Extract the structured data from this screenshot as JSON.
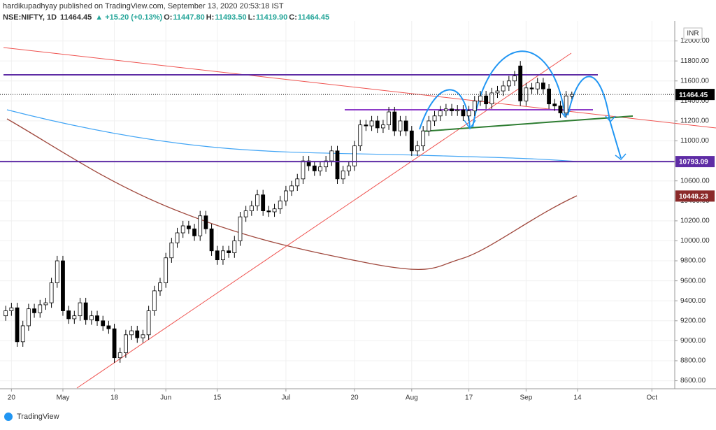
{
  "chart_data": {
    "type": "candlestick",
    "publisher": "hardikupadhyay published on TradingView.com, September 13, 2020 20:53:18 IST",
    "symbol": "NSE:NIFTY, 1D",
    "last_label": "11464.45",
    "change": "▲ +15.20 (+0.13%)",
    "ohlc_legend": [
      {
        "key": "O:",
        "value": "11447.80"
      },
      {
        "key": "H:",
        "value": "11493.50"
      },
      {
        "key": "L:",
        "value": "11419.90"
      },
      {
        "key": "C:",
        "value": "11464.45"
      }
    ],
    "currency": "INR",
    "brand": "TradingView",
    "up_color": "#ffffff",
    "down_color": "#000000",
    "open": [
      9250,
      9300,
      9330,
      8990,
      9150,
      9320,
      9280,
      9360,
      9380,
      9580,
      9800,
      9300,
      9220,
      9250,
      9380,
      9210,
      9250,
      9200,
      9150,
      9120,
      8830,
      8880,
      9060,
      9100,
      9030,
      9060,
      9300,
      9500,
      9580,
      9830,
      9980,
      10080,
      10150,
      10120,
      10050,
      10250,
      10120,
      9900,
      9810,
      9900,
      9880,
      10000,
      10240,
      10300,
      10350,
      10460,
      10300,
      10290,
      10320,
      10400,
      10500,
      10550,
      10620,
      10800,
      10750,
      10700,
      10740,
      10800,
      10900,
      10620,
      10700,
      10750,
      10950,
      11160,
      11150,
      11200,
      11130,
      11160,
      11290,
      11100,
      11200,
      11100,
      10900,
      10950,
      11100,
      11200,
      11250,
      11300,
      11320,
      11300,
      11310,
      11250,
      11300,
      11400,
      11450,
      11370,
      11480,
      11500,
      11550,
      11600,
      11750,
      11400,
      11530,
      11520,
      11580,
      11520,
      11370,
      11350,
      11280,
      11447.8
    ],
    "high": [
      9350,
      9380,
      9380,
      9200,
      9370,
      9370,
      9410,
      9430,
      9630,
      9850,
      9850,
      9350,
      9300,
      9430,
      9430,
      9300,
      9300,
      9250,
      9200,
      9170,
      8930,
      9110,
      9150,
      9150,
      9110,
      9350,
      9550,
      9630,
      9880,
      10030,
      10130,
      10200,
      10200,
      10170,
      10300,
      10300,
      10170,
      9950,
      9950,
      9950,
      10050,
      10290,
      10350,
      10400,
      10510,
      10510,
      10350,
      10370,
      10450,
      10550,
      10600,
      10670,
      10850,
      10850,
      10800,
      10790,
      10850,
      10950,
      10950,
      10750,
      10800,
      11000,
      11210,
      11210,
      11250,
      11250,
      11210,
      11340,
      11340,
      11250,
      11250,
      11150,
      11000,
      11150,
      11250,
      11300,
      11350,
      11370,
      11370,
      11360,
      11360,
      11350,
      11450,
      11500,
      11500,
      11530,
      11550,
      11600,
      11650,
      11700,
      11800,
      11580,
      11580,
      11630,
      11630,
      11570,
      11420,
      11400,
      11500,
      11493.5
    ],
    "low": [
      9200,
      9250,
      8940,
      8940,
      9100,
      9230,
      9230,
      9310,
      9330,
      9530,
      9250,
      9170,
      9170,
      9200,
      9160,
      9160,
      9150,
      9100,
      9070,
      8780,
      8780,
      8830,
      9010,
      8980,
      8980,
      9010,
      9250,
      9450,
      9530,
      9780,
      9930,
      10030,
      10070,
      10000,
      10000,
      10070,
      9850,
      9760,
      9760,
      9830,
      9830,
      9950,
      10190,
      10250,
      10300,
      10250,
      10240,
      10240,
      10270,
      10350,
      10450,
      10500,
      10570,
      10700,
      10650,
      10650,
      10690,
      10750,
      10570,
      10570,
      10650,
      10700,
      10900,
      11100,
      11100,
      11080,
      11080,
      11110,
      11050,
      11050,
      11050,
      10850,
      10850,
      10900,
      11050,
      11150,
      11200,
      11250,
      11250,
      11250,
      11200,
      11200,
      11250,
      11350,
      11320,
      11320,
      11430,
      11450,
      11500,
      11550,
      11350,
      11350,
      11470,
      11470,
      11470,
      11320,
      11300,
      11230,
      11230,
      11419.9
    ],
    "close": [
      9300,
      9330,
      8990,
      9150,
      9320,
      9280,
      9360,
      9380,
      9580,
      9800,
      9300,
      9220,
      9250,
      9380,
      9210,
      9250,
      9200,
      9150,
      9120,
      8830,
      8880,
      9060,
      9100,
      9030,
      9060,
      9300,
      9500,
      9580,
      9830,
      9980,
      10080,
      10150,
      10120,
      10050,
      10250,
      10120,
      9900,
      9810,
      9900,
      9880,
      10000,
      10240,
      10300,
      10350,
      10460,
      10300,
      10290,
      10320,
      10400,
      10500,
      10550,
      10620,
      10800,
      10750,
      10700,
      10740,
      10800,
      10900,
      10620,
      10700,
      10750,
      10950,
      11160,
      11150,
      11200,
      11130,
      11160,
      11290,
      11100,
      11200,
      11100,
      10900,
      10950,
      11100,
      11200,
      11250,
      11300,
      11320,
      11300,
      11310,
      11250,
      11300,
      11400,
      11450,
      11370,
      11480,
      11500,
      11550,
      11600,
      11650,
      11400,
      11530,
      11520,
      11580,
      11520,
      11370,
      11350,
      11280,
      11450,
      11464.45
    ],
    "xlim": [
      -1,
      117
    ],
    "xticks": [
      {
        "value": 1,
        "label": "20"
      },
      {
        "value": 10,
        "label": "May"
      },
      {
        "value": 19,
        "label": "18"
      },
      {
        "value": 28,
        "label": "Jun"
      },
      {
        "value": 37,
        "label": "15"
      },
      {
        "value": 49,
        "label": "Jul"
      },
      {
        "value": 61,
        "label": "20"
      },
      {
        "value": 71,
        "label": "Aug"
      },
      {
        "value": 81,
        "label": "17"
      },
      {
        "value": 91,
        "label": "Sep"
      },
      {
        "value": 100,
        "label": "14"
      },
      {
        "value": 113,
        "label": "Oct"
      }
    ],
    "ylim": [
      8520,
      12200
    ],
    "yticks": [
      {
        "value": 8600,
        "label": "8600.00"
      },
      {
        "value": 8800,
        "label": "8800.00"
      },
      {
        "value": 9000,
        "label": "9000.00"
      },
      {
        "value": 9200,
        "label": "9200.00"
      },
      {
        "value": 9400,
        "label": "9400.00"
      },
      {
        "value": 9600,
        "label": "9600.00"
      },
      {
        "value": 9800,
        "label": "9800.00"
      },
      {
        "value": 10000,
        "label": "10000.00"
      },
      {
        "value": 10200,
        "label": "10200.00"
      },
      {
        "value": 10400,
        "label": "10400.00"
      },
      {
        "value": 10600,
        "label": "10600.00"
      },
      {
        "value": 10800,
        "label": "10800.00"
      },
      {
        "value": 11000,
        "label": "11000.00"
      },
      {
        "value": 11200,
        "label": "11200.00"
      },
      {
        "value": 11400,
        "label": "11400.00"
      },
      {
        "value": 11600,
        "label": "11600.00"
      },
      {
        "value": 11800,
        "label": "11800.00"
      },
      {
        "value": 12000,
        "label": "12000.00"
      }
    ],
    "grid": true,
    "price_tags": [
      {
        "value": 11464.45,
        "color": "#000000",
        "style": "dotted"
      },
      {
        "value": 10793.09,
        "color": "#5e2ca5",
        "style": "solid"
      },
      {
        "value": 10448.23,
        "color": "#8b2a2a",
        "style": "none"
      }
    ]
  }
}
